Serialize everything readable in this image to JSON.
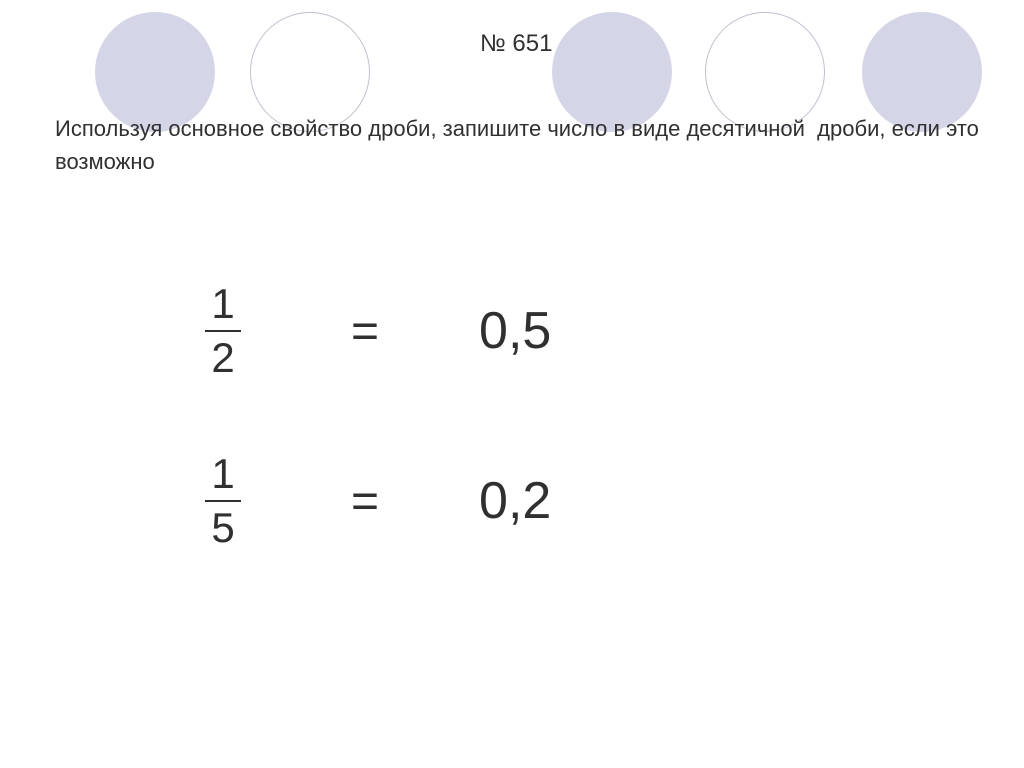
{
  "problem_number": "№ 651",
  "problem_text": "Используя основное свойство дроби, запишите число в виде десятичной  дроби, если это возможно",
  "equations": [
    {
      "numerator": "1",
      "denominator": "2",
      "equals": "=",
      "result": "0,5"
    },
    {
      "numerator": "1",
      "denominator": "5",
      "equals": "=",
      "result": "0,2"
    }
  ],
  "circles": [
    {
      "type": "filled",
      "color": "#d5d5e8"
    },
    {
      "type": "outline",
      "border_color": "#c0c0d0"
    },
    {
      "type": "filled",
      "color": "#d5d5e8"
    },
    {
      "type": "outline",
      "border_color": "#c0c0d0"
    },
    {
      "type": "filled",
      "color": "#d5d5e8"
    }
  ],
  "colors": {
    "background": "#ffffff",
    "text": "#303030",
    "circle_fill": "#d5d5e8",
    "circle_border": "#c0c0d0"
  },
  "typography": {
    "problem_number_fontsize": 24,
    "problem_text_fontsize": 22,
    "fraction_fontsize": 42,
    "equals_fontsize": 48,
    "decimal_fontsize": 52,
    "font_family": "Arial"
  }
}
